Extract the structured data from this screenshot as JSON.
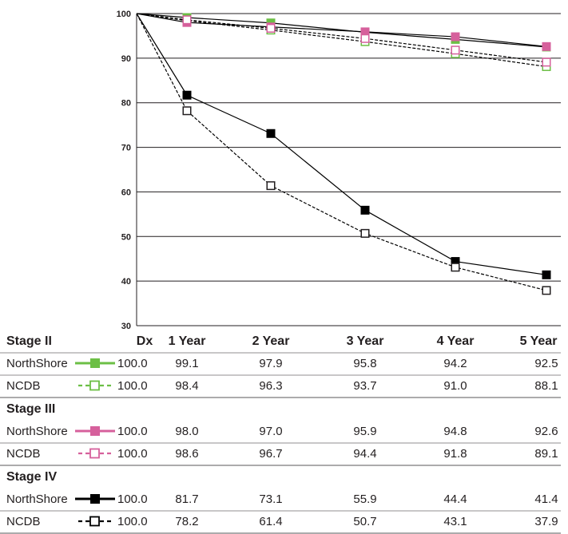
{
  "chart_data": {
    "type": "line",
    "title": "",
    "ylim": [
      30,
      100
    ],
    "yticks": [
      30,
      40,
      50,
      60,
      70,
      80,
      90,
      100
    ],
    "grid": true,
    "categories": [
      "Dx",
      "1 Year",
      "2 Year",
      "3 Year",
      "4 Year",
      "5 Year"
    ],
    "groups": [
      {
        "name": "Stage II",
        "series": [
          {
            "name": "NorthShore",
            "color": "#6cbf45",
            "marker": "filled",
            "line": "solid",
            "values": [
              100.0,
              99.1,
              97.9,
              95.8,
              94.2,
              92.5
            ],
            "labels": [
              "100.0",
              "99.1",
              "97.9",
              "95.8",
              "94.2",
              "92.5"
            ]
          },
          {
            "name": "NCDB",
            "color": "#6cbf45",
            "marker": "hollow",
            "line": "dashed",
            "values": [
              100.0,
              98.4,
              96.3,
              93.7,
              91.0,
              88.1
            ],
            "labels": [
              "100.0",
              "98.4",
              "96.3",
              "93.7",
              "91.0",
              "88.1"
            ]
          }
        ]
      },
      {
        "name": "Stage III",
        "series": [
          {
            "name": "NorthShore",
            "color": "#d6609c",
            "marker": "filled",
            "line": "solid",
            "values": [
              100.0,
              98.0,
              97.0,
              95.9,
              94.8,
              92.6
            ],
            "labels": [
              "100.0",
              "98.0",
              "97.0",
              "95.9",
              "94.8",
              "92.6"
            ]
          },
          {
            "name": "NCDB",
            "color": "#d6609c",
            "marker": "hollow",
            "line": "dashed",
            "values": [
              100.0,
              98.6,
              96.7,
              94.4,
              91.8,
              89.1
            ],
            "labels": [
              "100.0",
              "98.6",
              "96.7",
              "94.4",
              "91.8",
              "89.1"
            ]
          }
        ]
      },
      {
        "name": "Stage IV",
        "series": [
          {
            "name": "NorthShore",
            "color": "#000000",
            "marker": "filled",
            "line": "solid",
            "values": [
              100.0,
              81.7,
              73.1,
              55.9,
              44.4,
              41.4
            ],
            "labels": [
              "100.0",
              "81.7",
              "73.1",
              "55.9",
              "44.4",
              "41.4"
            ]
          },
          {
            "name": "NCDB",
            "color": "#000000",
            "marker": "hollow",
            "line": "dashed",
            "values": [
              100.0,
              78.2,
              61.4,
              50.7,
              43.1,
              37.9
            ],
            "labels": [
              "100.0",
              "78.2",
              "61.4",
              "50.7",
              "43.1",
              "37.9"
            ]
          }
        ]
      }
    ]
  }
}
